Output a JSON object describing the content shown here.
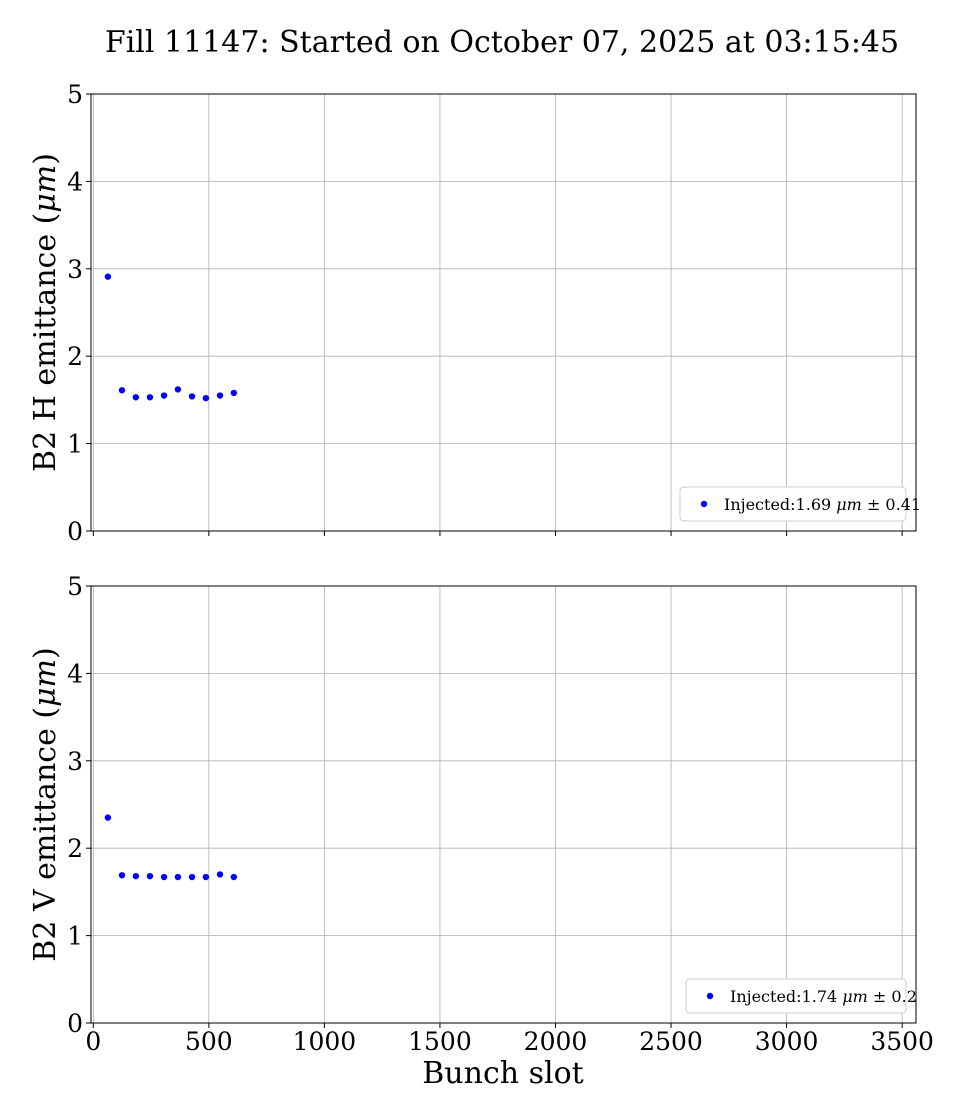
{
  "figure": {
    "title": "Fill 11147: Started on October 07, 2025 at 03:15:45",
    "xlabel": "Bunch slot"
  },
  "chart_data": [
    {
      "type": "scatter",
      "ylabel_prefix": "B2 H emittance (",
      "ylabel_unit": "μm",
      "ylabel_suffix": ")",
      "xlim": [
        -10,
        3560
      ],
      "ylim": [
        0,
        5
      ],
      "xticks": [
        0,
        500,
        1000,
        1500,
        2000,
        2500,
        3000,
        3500
      ],
      "xtick_labels": [],
      "yticks": [
        0,
        1,
        2,
        3,
        4,
        5
      ],
      "ytick_labels": [
        "0",
        "1",
        "2",
        "3",
        "4",
        "5"
      ],
      "grid": true,
      "legend_position": "lower-right",
      "series": [
        {
          "name_prefix": "Injected:1.69 ",
          "name_unit": "μm",
          "name_suffix": " ± 0.41",
          "color": "#0000ff",
          "x": [
            63,
            124,
            184,
            245,
            306,
            366,
            427,
            487,
            548,
            608
          ],
          "y": [
            2.91,
            1.61,
            1.53,
            1.53,
            1.55,
            1.62,
            1.54,
            1.52,
            1.55,
            1.58
          ]
        }
      ]
    },
    {
      "type": "scatter",
      "ylabel_prefix": "B2 V emittance (",
      "ylabel_unit": "μm",
      "ylabel_suffix": ")",
      "xlim": [
        -10,
        3560
      ],
      "ylim": [
        0,
        5
      ],
      "xticks": [
        0,
        500,
        1000,
        1500,
        2000,
        2500,
        3000,
        3500
      ],
      "xtick_labels": [
        "0",
        "500",
        "1000",
        "1500",
        "2000",
        "2500",
        "3000",
        "3500"
      ],
      "yticks": [
        0,
        1,
        2,
        3,
        4,
        5
      ],
      "ytick_labels": [
        "0",
        "1",
        "2",
        "3",
        "4",
        "5"
      ],
      "grid": true,
      "legend_position": "lower-right",
      "series": [
        {
          "name_prefix": "Injected:1.74 ",
          "name_unit": "μm",
          "name_suffix": " ± 0.2",
          "color": "#0000ff",
          "x": [
            63,
            124,
            184,
            245,
            306,
            366,
            427,
            487,
            548,
            608
          ],
          "y": [
            2.35,
            1.69,
            1.68,
            1.68,
            1.67,
            1.67,
            1.67,
            1.67,
            1.7,
            1.67
          ]
        }
      ]
    }
  ]
}
